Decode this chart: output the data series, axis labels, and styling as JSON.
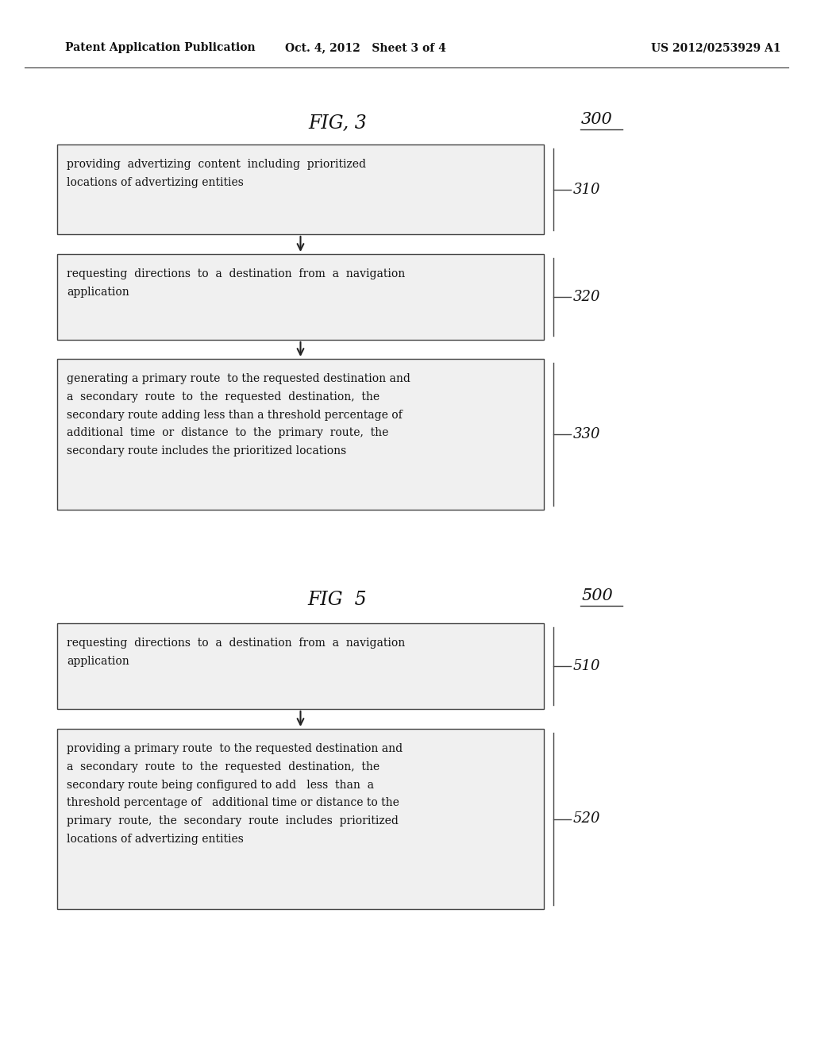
{
  "bg_color": "#ffffff",
  "header_left": "Patent Application Publication",
  "header_mid": "Oct. 4, 2012   Sheet 3 of 4",
  "header_right": "US 2012/0253929 A1",
  "fig3_title": "FIG, 3",
  "fig3_ref": "300",
  "fig5_title": "FIG  5",
  "fig5_ref": "500",
  "boxes_fig3": [
    {
      "text": "providing  advertizing  content  including  prioritized\nlocations of advertizing entities",
      "ref": "310"
    },
    {
      "text": "requesting  directions  to  a  destination  from  a  navigation\napplication",
      "ref": "320"
    },
    {
      "text": "generating a primary route  to the requested destination and\na  secondary  route  to  the  requested  destination,  the\nsecondary route adding less than a threshold percentage of\nadditional  time  or  distance  to  the  primary  route,  the\nsecondary route includes the prioritized locations",
      "ref": "330"
    }
  ],
  "boxes_fig5": [
    {
      "text": "requesting  directions  to  a  destination  from  a  navigation\napplication",
      "ref": "510"
    },
    {
      "text": "providing a primary route  to the requested destination and\na  secondary  route  to  the  requested  destination,  the\nsecondary route being configured to add   less  than  a\nthreshold percentage of   additional time or distance to the\nprimary  route,  the  secondary  route  includes  prioritized\nlocations of advertizing entities",
      "ref": "520"
    }
  ],
  "arrow_color": "#222222",
  "box_edge_color": "#444444",
  "text_color": "#111111",
  "ref_line_color": "#444444"
}
